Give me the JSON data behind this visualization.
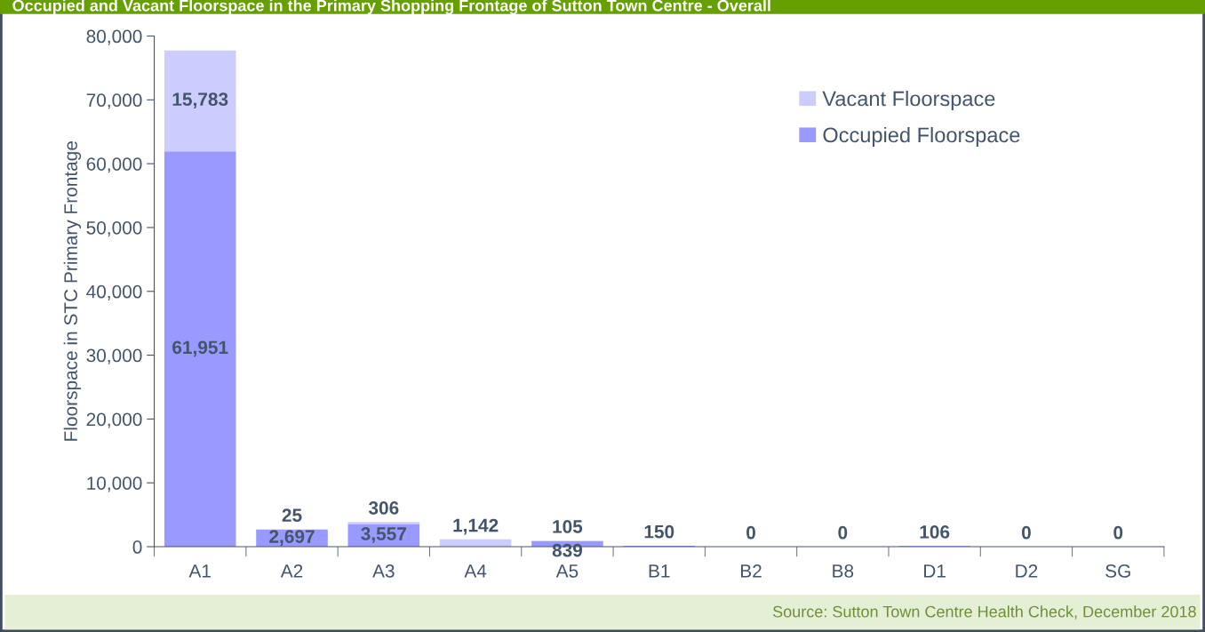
{
  "chart_data": {
    "type": "bar",
    "stacked": true,
    "title": "Occupied and Vacant Floorspace in the Primary Shopping Frontage of Sutton Town Centre - Overall",
    "ylabel": "Floorspace in STC Primary Frontage",
    "categories": [
      "A1",
      "A2",
      "A3",
      "A4",
      "A5",
      "B1",
      "B2",
      "B8",
      "D1",
      "D2",
      "SG"
    ],
    "series": [
      {
        "name": "Occupied Floorspace",
        "color": "#9999ff",
        "values": [
          61951,
          2697,
          3557,
          0,
          839,
          150,
          0,
          0,
          106,
          0,
          0
        ],
        "value_labels": [
          "61,951",
          "2,697",
          "3,557",
          null,
          "839",
          "150",
          null,
          null,
          "106",
          null,
          null
        ]
      },
      {
        "name": "Vacant Floorspace",
        "color": "#ccccff",
        "values": [
          15783,
          25,
          306,
          1142,
          105,
          0,
          0,
          0,
          0,
          0,
          0
        ],
        "value_labels": [
          "15,783",
          "25",
          "306",
          "1,142",
          "105",
          null,
          "0",
          "0",
          null,
          "0",
          "0"
        ]
      }
    ],
    "ylim": [
      0,
      80000
    ],
    "yticks": [
      {
        "value": 0,
        "label": "0"
      },
      {
        "value": 10000,
        "label": "10,000"
      },
      {
        "value": 20000,
        "label": "20,000"
      },
      {
        "value": 30000,
        "label": "30,000"
      },
      {
        "value": 40000,
        "label": "40,000"
      },
      {
        "value": 50000,
        "label": "50,000"
      },
      {
        "value": 60000,
        "label": "60,000"
      },
      {
        "value": 70000,
        "label": "70,000"
      },
      {
        "value": 80000,
        "label": "80,000"
      }
    ],
    "grid": false,
    "legend": "top right",
    "annotations": [
      "Source: Sutton Town Centre Health Check, December 2018"
    ]
  }
}
